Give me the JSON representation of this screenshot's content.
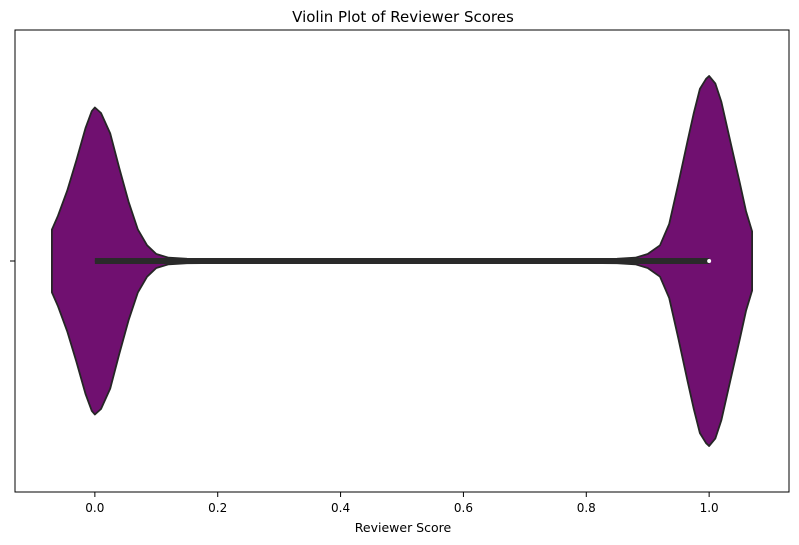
{
  "chart_data": {
    "type": "violin",
    "title": "Violin Plot of Reviewer Scores",
    "xlabel": "Reviewer Score",
    "ylabel": "",
    "orientation": "horizontal",
    "xlim": [
      -0.13,
      1.13
    ],
    "xticks": [
      0.0,
      0.2,
      0.4,
      0.6,
      0.8,
      1.0
    ],
    "xtick_labels": [
      "0.0",
      "0.2",
      "0.4",
      "0.6",
      "0.8",
      "1.0"
    ],
    "grid": false,
    "colors": {
      "fill": "#701070",
      "outline": "#262626",
      "box": "#2a2a2a",
      "median": "#ffffff"
    },
    "quartiles": {
      "q1": 0.0,
      "median": 1.0,
      "q3": 1.0,
      "whisker_low": 0.0,
      "whisker_high": 1.0
    },
    "density_profile": {
      "x": [
        -0.07,
        -0.06,
        -0.045,
        -0.03,
        -0.015,
        -0.005,
        0.0,
        0.01,
        0.025,
        0.04,
        0.055,
        0.07,
        0.085,
        0.1,
        0.12,
        0.15,
        0.2,
        0.3,
        0.5,
        0.7,
        0.8,
        0.85,
        0.88,
        0.9,
        0.92,
        0.935,
        0.95,
        0.965,
        0.975,
        0.985,
        0.995,
        1.0,
        1.01,
        1.02,
        1.035,
        1.05,
        1.06,
        1.07
      ],
      "half_width": [
        0.17,
        0.245,
        0.38,
        0.545,
        0.72,
        0.81,
        0.83,
        0.8,
        0.69,
        0.5,
        0.32,
        0.17,
        0.085,
        0.038,
        0.018,
        0.012,
        0.011,
        0.011,
        0.011,
        0.011,
        0.011,
        0.012,
        0.018,
        0.038,
        0.085,
        0.2,
        0.42,
        0.65,
        0.8,
        0.93,
        0.985,
        1.0,
        0.96,
        0.86,
        0.64,
        0.42,
        0.27,
        0.16
      ]
    }
  }
}
